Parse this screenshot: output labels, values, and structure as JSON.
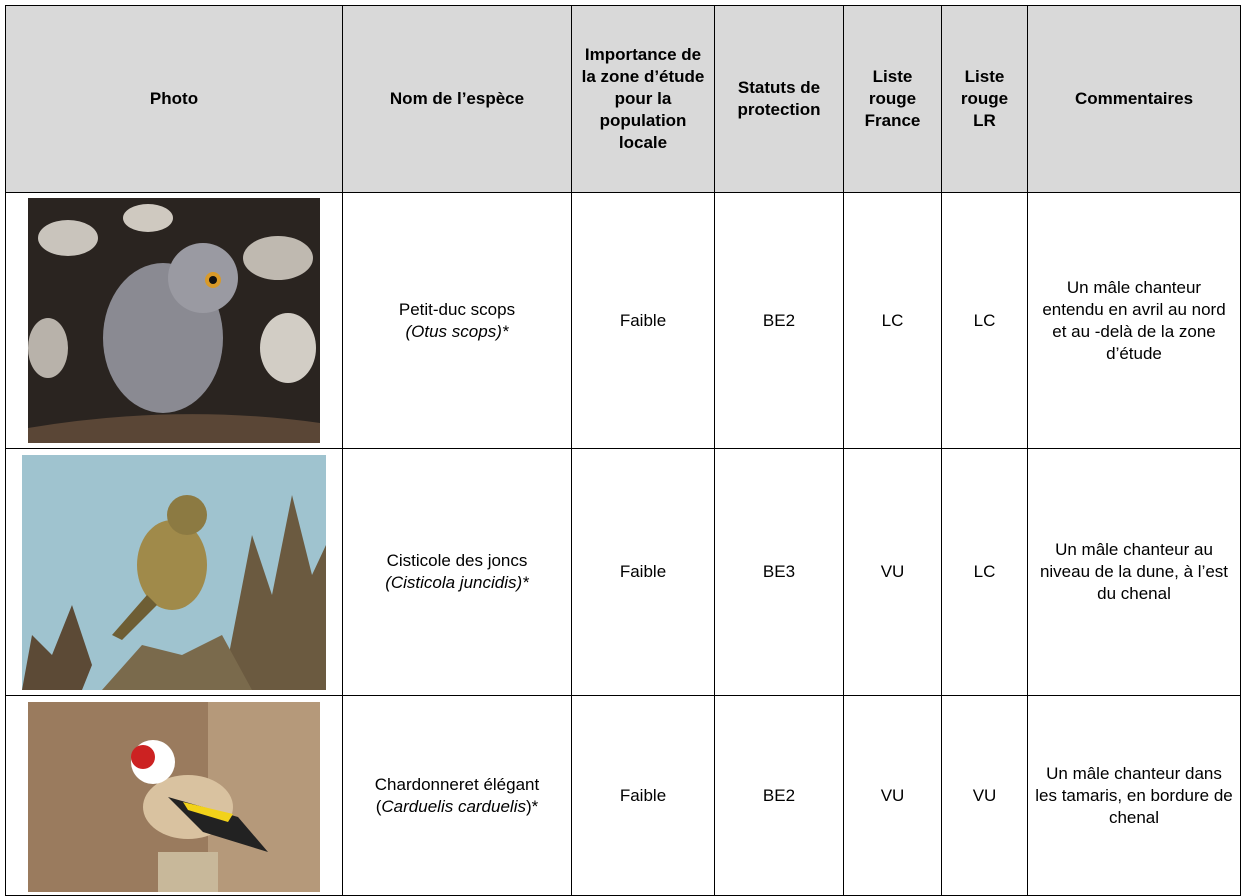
{
  "header": [
    "Photo",
    "Nom de l’espèce",
    "Importance de la zone d’étude pour la population locale",
    "Statuts de protection",
    "Liste rouge France",
    "Liste rouge LR",
    "Commentaires"
  ],
  "rows": [
    {
      "name": {
        "common": "Petit-duc scops",
        "latin": "(Otus scops)*"
      },
      "importance": "Faible",
      "protection": "BE2",
      "lr_france": "LC",
      "lr_region": "LC",
      "comment": "Un mâle chanteur entendu en avril au nord et au -delà de la zone d’étude"
    },
    {
      "name": {
        "common": "Cisticole des joncs",
        "latin": "(Cisticola juncidis)*"
      },
      "importance": "Faible",
      "protection": "BE3",
      "lr_france": "VU",
      "lr_region": "LC",
      "comment": "Un mâle chanteur au niveau de la dune, à l’est du chenal"
    },
    {
      "name": {
        "common": "Chardonneret élégant (",
        "latin": "Carduelis carduelis",
        "suffix": ")*"
      },
      "importance": "Faible",
      "protection": "BE2",
      "lr_france": "VU",
      "lr_region": "VU",
      "comment": "Un mâle chanteur dans les tamaris, en bordure de chenal"
    }
  ]
}
